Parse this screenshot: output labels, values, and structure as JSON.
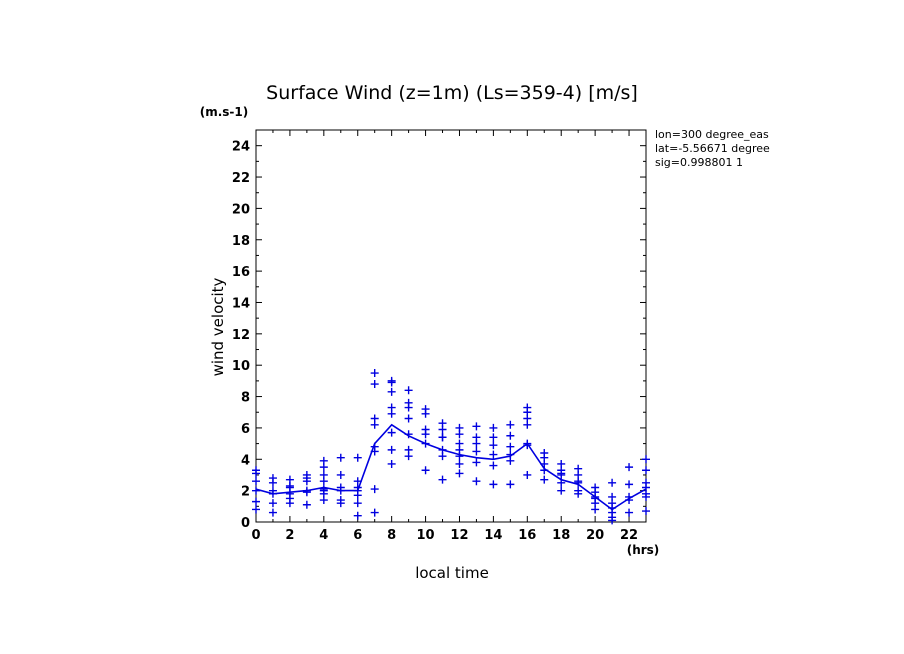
{
  "chart_data": {
    "type": "scatter",
    "title": "Surface Wind (z=1m) (Ls=359-4) [m/s]",
    "ylabel": "wind velocity",
    "yunit": "(m.s-1)",
    "xlabel": "local time",
    "xunit": "(hrs)",
    "xlim": [
      0,
      23
    ],
    "ylim": [
      0,
      25
    ],
    "xticks": [
      0,
      2,
      4,
      6,
      8,
      10,
      12,
      14,
      16,
      18,
      20,
      22
    ],
    "yticks": [
      0,
      2,
      4,
      6,
      8,
      10,
      12,
      14,
      16,
      18,
      20,
      22,
      24
    ],
    "info": [
      "lon=300 degree_eas",
      "lat=-5.56671 degree",
      "sig=0.998801 1"
    ],
    "color": "#0000e0",
    "mean_line": {
      "x": [
        0,
        1,
        2,
        3,
        4,
        5,
        6,
        7,
        8,
        9,
        10,
        11,
        12,
        13,
        14,
        15,
        16,
        17,
        18,
        19,
        20,
        21,
        22,
        23
      ],
      "y": [
        2.1,
        1.8,
        1.9,
        2.0,
        2.2,
        2.0,
        2.0,
        5.0,
        6.2,
        5.5,
        5.0,
        4.6,
        4.3,
        4.1,
        4.0,
        4.2,
        5.0,
        3.4,
        2.7,
        2.4,
        1.6,
        0.8,
        1.5,
        2.1
      ]
    },
    "points": {
      "x": [
        0,
        1,
        2,
        3,
        4,
        5,
        6,
        7,
        8,
        9,
        10,
        11,
        12,
        13,
        14,
        15,
        16,
        17,
        18,
        19,
        20,
        21,
        22,
        23
      ],
      "y": [
        [
          3.3,
          3.1,
          2.6,
          2.0,
          1.3,
          0.8
        ],
        [
          2.8,
          2.5,
          2.0,
          1.8,
          1.2,
          0.6
        ],
        [
          2.7,
          2.3,
          2.2,
          1.8,
          1.5,
          1.2
        ],
        [
          3.0,
          2.8,
          2.6,
          2.0,
          1.9,
          1.1
        ],
        [
          3.9,
          3.5,
          3.0,
          2.6,
          2.1,
          2.0,
          1.8,
          1.4
        ],
        [
          4.1,
          3.0,
          2.2,
          2.0,
          1.4,
          1.2
        ],
        [
          4.1,
          2.6,
          2.2,
          2.0,
          1.7,
          1.2,
          0.4
        ],
        [
          9.5,
          8.8,
          6.6,
          6.2,
          4.8,
          4.5,
          2.1,
          0.6
        ],
        [
          9.0,
          8.9,
          8.3,
          7.3,
          6.9,
          5.7,
          4.6,
          3.7
        ],
        [
          8.4,
          7.6,
          7.3,
          6.6,
          5.6,
          4.6,
          4.2
        ],
        [
          7.2,
          6.9,
          5.9,
          5.6,
          5.0,
          3.3
        ],
        [
          6.3,
          5.9,
          5.4,
          5.4,
          4.6,
          4.2,
          2.7
        ],
        [
          6.0,
          5.6,
          5.0,
          4.6,
          4.2,
          3.7,
          3.1
        ],
        [
          6.1,
          5.4,
          5.0,
          4.5,
          3.8,
          2.6
        ],
        [
          6.0,
          5.4,
          4.9,
          4.3,
          3.6,
          2.4
        ],
        [
          6.2,
          5.5,
          4.8,
          4.3,
          3.9,
          2.4
        ],
        [
          7.3,
          7.0,
          6.6,
          6.2,
          5.0,
          4.9,
          3.0
        ],
        [
          4.4,
          4.1,
          3.7,
          3.3,
          2.7
        ],
        [
          3.7,
          3.3,
          3.1,
          3.0,
          2.5,
          2.0
        ],
        [
          3.4,
          3.0,
          2.6,
          2.5,
          2.0,
          1.8
        ],
        [
          2.2,
          1.9,
          1.6,
          1.5,
          1.2,
          0.8
        ],
        [
          2.5,
          1.6,
          1.2,
          0.9,
          0.6,
          0.3,
          0.1
        ],
        [
          3.5,
          2.4,
          1.6,
          1.4,
          0.6
        ],
        [
          4.0,
          3.3,
          2.5,
          2.2,
          1.8,
          1.6,
          0.7
        ]
      ]
    }
  }
}
